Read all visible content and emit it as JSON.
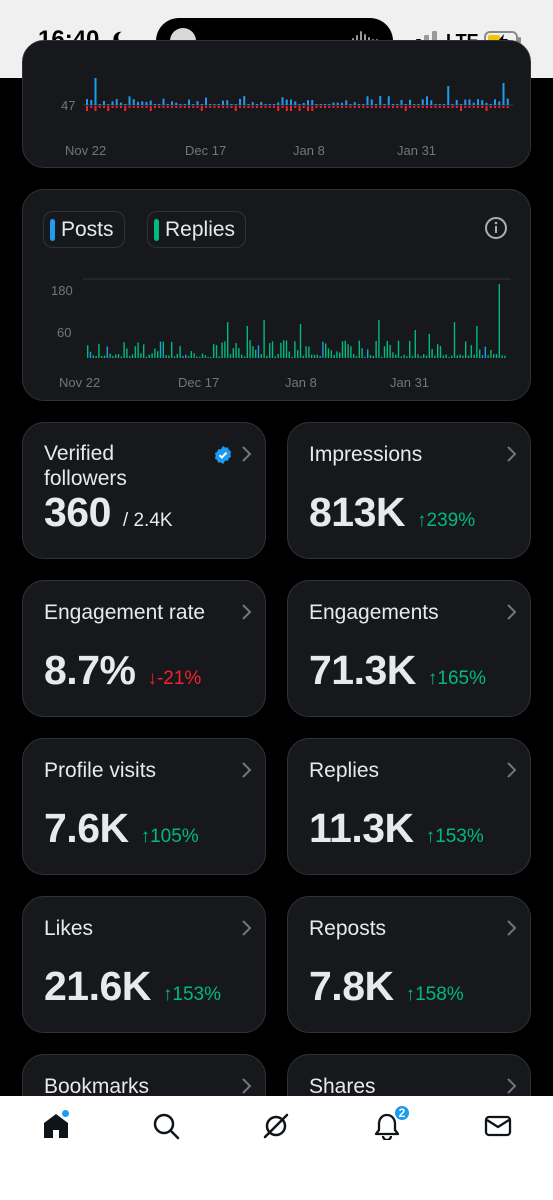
{
  "status": {
    "time": "16:40",
    "network": "LTE"
  },
  "top_chart": {
    "y_tick": "47",
    "x_ticks": [
      "Nov 22",
      "Dec 17",
      "Jan 8",
      "Jan 31"
    ],
    "color_up": "#1d9bf0",
    "color_down": "#f4212e"
  },
  "posts_chart": {
    "chips": [
      {
        "label": "Posts",
        "color": "#1d9bf0"
      },
      {
        "label": "Replies",
        "color": "#00ba7c"
      }
    ],
    "y_ticks": [
      "180",
      "60"
    ],
    "x_ticks": [
      "Nov 22",
      "Dec 17",
      "Jan 8",
      "Jan 31"
    ],
    "icon": "info-icon"
  },
  "stats": [
    {
      "label_line1": "Verified",
      "label_line2": "followers",
      "value": "360",
      "sub": "/ 2.4K",
      "delta": "",
      "direction": ""
    },
    {
      "label_line1": "Impressions",
      "label_line2": "",
      "value": "813K",
      "sub": "",
      "delta": "239%",
      "direction": "up"
    },
    {
      "label_line1": "Engagement rate",
      "label_line2": "",
      "value": "8.7%",
      "sub": "",
      "delta": "-21%",
      "direction": "down"
    },
    {
      "label_line1": "Engagements",
      "label_line2": "",
      "value": "71.3K",
      "sub": "",
      "delta": "165%",
      "direction": "up"
    },
    {
      "label_line1": "Profile visits",
      "label_line2": "",
      "value": "7.6K",
      "sub": "",
      "delta": "105%",
      "direction": "up"
    },
    {
      "label_line1": "Replies",
      "label_line2": "",
      "value": "11.3K",
      "sub": "",
      "delta": "153%",
      "direction": "up"
    },
    {
      "label_line1": "Likes",
      "label_line2": "",
      "value": "21.6K",
      "sub": "",
      "delta": "153%",
      "direction": "up"
    },
    {
      "label_line1": "Reposts",
      "label_line2": "",
      "value": "7.8K",
      "sub": "",
      "delta": "158%",
      "direction": "up"
    },
    {
      "label_line1": "Bookmarks",
      "label_line2": "",
      "value": "",
      "sub": "",
      "delta": "",
      "direction": ""
    },
    {
      "label_line1": "Shares",
      "label_line2": "",
      "value": "",
      "sub": "",
      "delta": "",
      "direction": ""
    }
  ],
  "nav": {
    "items": [
      "home-icon",
      "search-icon",
      "grok-icon",
      "notifications-icon",
      "messages-icon"
    ],
    "notification_count": "2"
  }
}
